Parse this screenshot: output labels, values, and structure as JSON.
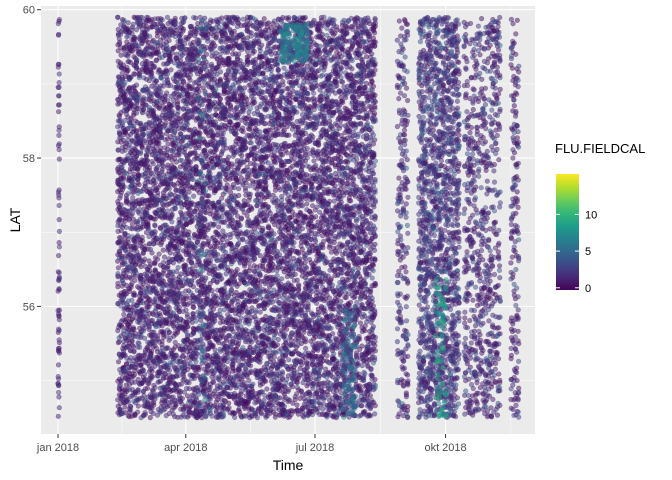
{
  "chart_data": {
    "type": "scatter",
    "title": "",
    "xlabel": "Time",
    "ylabel": "LAT",
    "xlim": [
      "2017-12-20",
      "2018-12-03"
    ],
    "ylim": [
      54.28,
      60.05
    ],
    "x_ticks": [
      {
        "date": "2018-01-01",
        "label": "jan 2018"
      },
      {
        "date": "2018-04-01",
        "label": "apr 2018"
      },
      {
        "date": "2018-07-01",
        "label": "jul 2018"
      },
      {
        "date": "2018-10-01",
        "label": "okt 2018"
      }
    ],
    "y_ticks": [
      {
        "value": 56,
        "label": "56"
      },
      {
        "value": 58,
        "label": "58"
      },
      {
        "value": 60,
        "label": "60"
      }
    ],
    "grid": true,
    "point_alpha": 0.5,
    "color_scale": {
      "name": "FLU.FIELDCAL",
      "palette": "viridis",
      "limits": [
        -0.3,
        15.5
      ],
      "breaks": [
        0,
        5,
        10
      ],
      "break_labels": [
        "0",
        "5",
        "10"
      ],
      "colors": [
        "#440154",
        "#482878",
        "#3E4A89",
        "#31688E",
        "#26828E",
        "#1F9E89",
        "#35B779",
        "#6DCD59",
        "#B4DE2C",
        "#FDE725"
      ]
    },
    "legend_position": "right",
    "observation_periods": [
      {
        "start": "2018-01-01",
        "end": "2018-01-02",
        "lat_min": 54.48,
        "lat_max": 59.9,
        "density": "sparse",
        "flu_typical": 0.5
      },
      {
        "start": "2018-02-12",
        "end": "2018-08-12",
        "lat_min": 54.5,
        "lat_max": 59.9,
        "density": "dense",
        "flu_typical": 1.5
      },
      {
        "start": "2018-08-28",
        "end": "2018-09-04",
        "lat_min": 54.5,
        "lat_max": 59.9,
        "density": "medium",
        "flu_typical": 2
      },
      {
        "start": "2018-09-12",
        "end": "2018-10-10",
        "lat_min": 54.5,
        "lat_max": 59.9,
        "density": "dense",
        "flu_typical": 3
      },
      {
        "start": "2018-10-14",
        "end": "2018-11-08",
        "lat_min": 54.5,
        "lat_max": 59.9,
        "density": "medium",
        "flu_typical": 2
      },
      {
        "start": "2018-11-16",
        "end": "2018-11-21",
        "lat_min": 54.5,
        "lat_max": 59.9,
        "density": "medium",
        "flu_typical": 1.5
      }
    ],
    "elevated_flu_features": [
      {
        "start": "2018-04-10",
        "end": "2018-04-15",
        "lat_min": 54.5,
        "lat_max": 59.9,
        "flu": 5
      },
      {
        "start": "2018-06-07",
        "end": "2018-06-26",
        "lat_min": 59.3,
        "lat_max": 59.8,
        "flu": 6
      },
      {
        "start": "2018-07-20",
        "end": "2018-07-30",
        "lat_min": 54.5,
        "lat_max": 56.0,
        "flu": 5
      },
      {
        "start": "2018-09-24",
        "end": "2018-10-02",
        "lat_min": 54.5,
        "lat_max": 56.4,
        "flu": 8
      }
    ]
  }
}
